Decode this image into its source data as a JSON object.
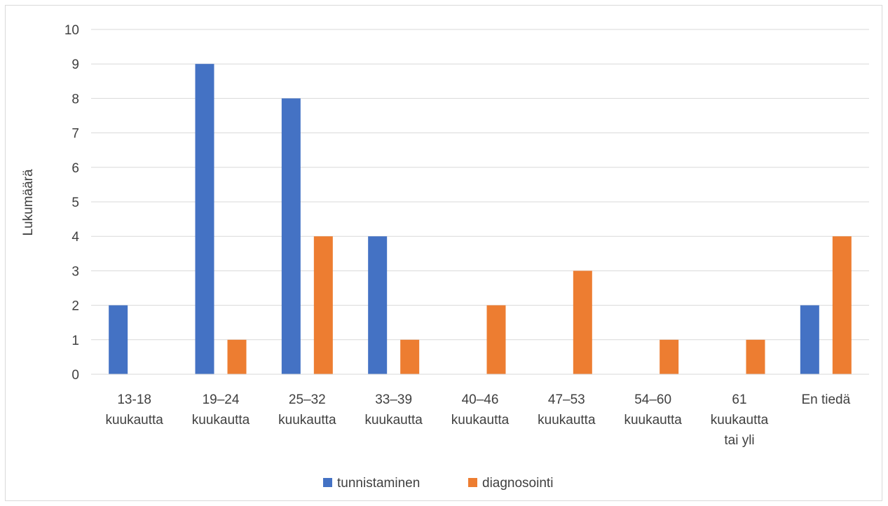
{
  "chart_data": {
    "type": "bar",
    "title": "",
    "xlabel": "",
    "ylabel": "Lukumäärä",
    "ylim": [
      0,
      10
    ],
    "yticks": [
      "0",
      "1",
      "2",
      "3",
      "4",
      "5",
      "6",
      "7",
      "8",
      "9",
      "10"
    ],
    "grid": true,
    "legend_position": "bottom",
    "categories": [
      [
        "13-18",
        "kuukautta"
      ],
      [
        "19–24",
        "kuukautta"
      ],
      [
        "25–32",
        "kuukautta"
      ],
      [
        "33–39",
        "kuukautta"
      ],
      [
        "40–46",
        "kuukautta"
      ],
      [
        "47–53",
        "kuukautta"
      ],
      [
        "54–60",
        "kuukautta"
      ],
      [
        "61",
        "kuukautta",
        "tai yli"
      ],
      [
        "En tiedä"
      ]
    ],
    "series": [
      {
        "name": "tunnistaminen",
        "color": "#4472c4",
        "values": [
          2,
          9,
          8,
          4,
          0,
          0,
          0,
          0,
          2
        ]
      },
      {
        "name": "diagnosointi",
        "color": "#ed7d31",
        "values": [
          0,
          1,
          4,
          1,
          2,
          3,
          1,
          1,
          4
        ]
      }
    ]
  }
}
